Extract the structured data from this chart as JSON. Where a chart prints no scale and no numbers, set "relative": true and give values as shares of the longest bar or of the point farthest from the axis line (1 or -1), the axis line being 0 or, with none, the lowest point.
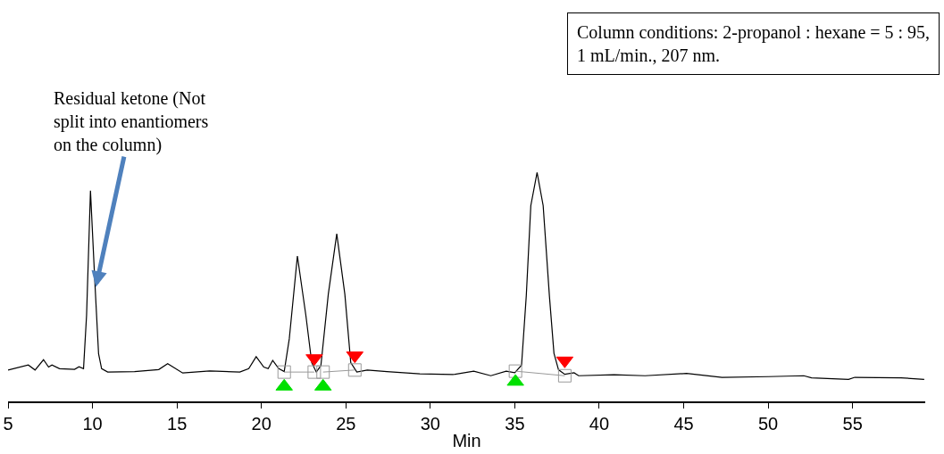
{
  "chart_data": {
    "type": "line",
    "relative": true,
    "xlabel": "Min",
    "xlim": [
      5,
      59.3
    ],
    "xticks": [
      5,
      10,
      15,
      20,
      25,
      30,
      35,
      40,
      45,
      50,
      55
    ],
    "grid": false,
    "annotations": [
      {
        "text": "Residual ketone (Not split into enantiomers on the column)",
        "x": 10.2,
        "y": 0.5
      },
      "Column conditions: 2-propanol : hexane = 5 : 95, 1 mL/min., 207 nm."
    ],
    "series": [
      {
        "color": "#000000",
        "marker": "none",
        "line_style": "solid",
        "x": [
          5.0,
          6.2,
          6.6,
          7.1,
          7.4,
          7.6,
          8.05,
          8.94,
          9.2,
          9.47,
          9.65,
          9.88,
          10.15,
          10.36,
          10.54,
          10.9,
          12.49,
          13.92,
          14.45,
          15.34,
          16.94,
          18.72,
          19.25,
          19.69,
          20.14,
          20.4,
          20.67,
          21.03,
          21.35,
          21.65,
          22.13,
          22.63,
          22.98,
          23.25,
          23.52,
          23.96,
          24.46,
          24.94,
          25.29,
          25.65,
          26.27,
          27.43,
          29.38,
          31.34,
          32.57,
          33.58,
          34.49,
          35.0,
          35.4,
          35.68,
          35.95,
          36.32,
          36.68,
          37.05,
          37.32,
          37.59,
          37.96,
          38.51,
          38.78,
          40.88,
          42.71,
          45.17,
          47.27,
          50.01,
          52.11,
          52.57,
          54.76,
          55.13,
          57.87,
          59.24
        ],
        "values": [
          0.137,
          0.159,
          0.137,
          0.182,
          0.15,
          0.159,
          0.143,
          0.14,
          0.151,
          0.143,
          0.377,
          0.92,
          0.507,
          0.208,
          0.143,
          0.128,
          0.13,
          0.139,
          0.165,
          0.124,
          0.133,
          0.128,
          0.143,
          0.195,
          0.15,
          0.143,
          0.179,
          0.143,
          0.13,
          0.273,
          0.635,
          0.377,
          0.169,
          0.128,
          0.156,
          0.468,
          0.732,
          0.468,
          0.169,
          0.128,
          0.137,
          0.13,
          0.12,
          0.117,
          0.132,
          0.112,
          0.132,
          0.125,
          0.158,
          0.46,
          0.855,
          1.0,
          0.855,
          0.46,
          0.21,
          0.138,
          0.118,
          0.125,
          0.112,
          0.116,
          0.112,
          0.122,
          0.105,
          0.108,
          0.112,
          0.103,
          0.096,
          0.105,
          0.103,
          0.096
        ]
      },
      {
        "color": "#999999",
        "marker": "square",
        "line_style": "solid",
        "x": [
          21.35,
          23.13,
          23.4,
          23.65,
          25.53,
          30,
          35.04,
          37.96
        ],
        "values": [
          0.128,
          0.128,
          null,
          0.128,
          0.137,
          null,
          0.132,
          0.112
        ]
      },
      {
        "type": "scatter",
        "color": "#00e000",
        "marker": "triangle",
        "x": [
          21.35,
          23.65,
          35.04
        ],
        "values": [
          0.065,
          0.065,
          0.086
        ]
      },
      {
        "type": "scatter",
        "color": "#ff0000",
        "marker": "triangle-down",
        "x": [
          23.13,
          25.53,
          37.96
        ],
        "values": [
          0.188,
          0.2,
          0.178
        ]
      }
    ]
  }
}
